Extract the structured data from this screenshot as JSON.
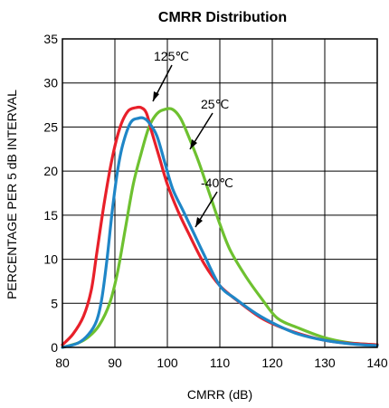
{
  "chart_data": {
    "type": "line",
    "title": "CMRR Distribution",
    "xlabel": "CMRR (dB)",
    "ylabel": "PERCENTAGE PER 5 dB INTERVAL",
    "xlim": [
      80,
      140
    ],
    "ylim": [
      0,
      35
    ],
    "xticks": [
      80,
      90,
      100,
      110,
      120,
      130,
      140
    ],
    "yticks": [
      0,
      5,
      10,
      15,
      20,
      25,
      30,
      35
    ],
    "grid": true,
    "series": [
      {
        "name": "125℃",
        "color": "#e8202a",
        "x": [
          80,
          82,
          84,
          85.5,
          86.5,
          88,
          89.5,
          91,
          92.5,
          94,
          95,
          96,
          97,
          98.5,
          100,
          102,
          104,
          107,
          110,
          114,
          118,
          122,
          126,
          130,
          134,
          140
        ],
        "y": [
          0.3,
          1.5,
          3.5,
          6.5,
          10.5,
          16.5,
          21.5,
          25,
          26.8,
          27.2,
          27.2,
          26.6,
          24.5,
          21.5,
          18.5,
          15.5,
          13,
          9.5,
          7,
          5,
          3.3,
          2.2,
          1.4,
          0.8,
          0.5,
          0.3
        ]
      },
      {
        "name": "25℃",
        "color": "#6ec130",
        "x": [
          80,
          83,
          85,
          87,
          89,
          90.5,
          92,
          93.5,
          95,
          96.5,
          98,
          99.5,
          101,
          102.5,
          104,
          106,
          108,
          110,
          112,
          115,
          118,
          121,
          125,
          130,
          135,
          140
        ],
        "y": [
          0,
          0.5,
          1.2,
          2.5,
          5,
          8.5,
          13.5,
          18.5,
          22,
          25,
          26.5,
          27,
          27,
          26,
          24,
          21,
          17.5,
          14,
          11,
          8,
          5.5,
          3.3,
          2.2,
          1.1,
          0.5,
          0.3
        ]
      },
      {
        "name": "-40℃",
        "color": "#1f86c7",
        "x": [
          80,
          83,
          85,
          86.5,
          87.5,
          88.5,
          89.5,
          90.5,
          91.5,
          93,
          94.5,
          95.5,
          96.5,
          98,
          99.5,
          101,
          103,
          105,
          107,
          110,
          113,
          117,
          121,
          125,
          130,
          135,
          140
        ],
        "y": [
          0,
          0.5,
          1.5,
          3,
          5.5,
          10,
          15.5,
          20,
          23,
          25.5,
          26,
          26,
          25.5,
          24,
          21,
          18,
          15.5,
          13,
          10.5,
          7,
          5.5,
          3.8,
          2.5,
          1.5,
          0.8,
          0.4,
          0.2
        ]
      }
    ],
    "annotations": [
      "125℃",
      "25℃",
      "-40℃"
    ]
  }
}
